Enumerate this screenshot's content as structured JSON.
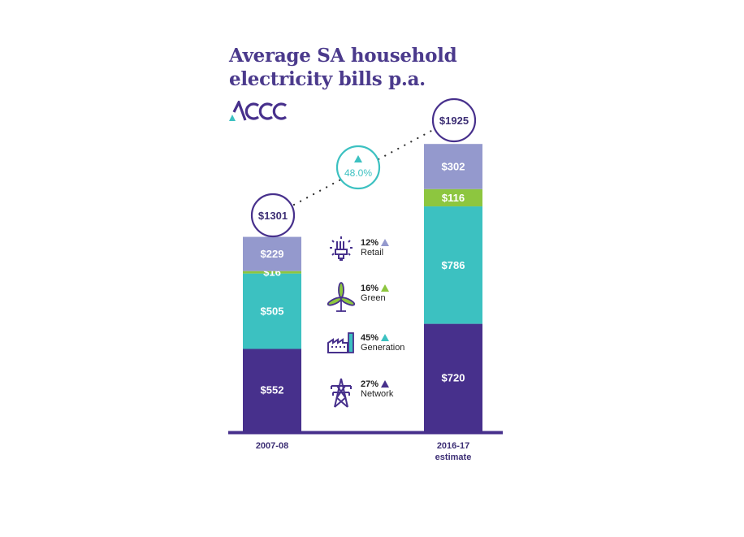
{
  "chart_data": {
    "type": "bar",
    "stacked": true,
    "title": "Average SA household electricity bills p.a.",
    "categories": [
      "2007-08",
      "2016-17 estimate"
    ],
    "category_lines": [
      [
        "2007-08"
      ],
      [
        "2016-17",
        "estimate"
      ]
    ],
    "series": [
      {
        "name": "Network",
        "values": [
          552,
          720
        ],
        "color": "#47308c"
      },
      {
        "name": "Generation",
        "values": [
          505,
          786
        ],
        "color": "#3cc1c1"
      },
      {
        "name": "Green",
        "values": [
          16,
          116
        ],
        "color": "#8dc63f"
      },
      {
        "name": "Retail",
        "values": [
          229,
          302
        ],
        "color": "#9499cd"
      }
    ],
    "data_labels": [
      [
        "$552",
        "$505",
        "$16",
        "$229"
      ],
      [
        "$720",
        "$786",
        "$116",
        "$302"
      ]
    ],
    "totals": [
      "$1301",
      "$1925"
    ],
    "change": "48.0%",
    "ylim": [
      0,
      1925
    ],
    "legend": [
      {
        "pct": "12%",
        "label": "Retail",
        "icon": "light-bulb-icon",
        "color": "#9499cd"
      },
      {
        "pct": "16%",
        "label": "Green",
        "icon": "wind-turbine-icon",
        "color": "#8dc63f"
      },
      {
        "pct": "45%",
        "label": "Generation",
        "icon": "factory-icon",
        "color": "#3cc1c1"
      },
      {
        "pct": "27%",
        "label": "Network",
        "icon": "transmission-tower-icon",
        "color": "#47308c"
      }
    ]
  },
  "logo_text": "ACCC"
}
